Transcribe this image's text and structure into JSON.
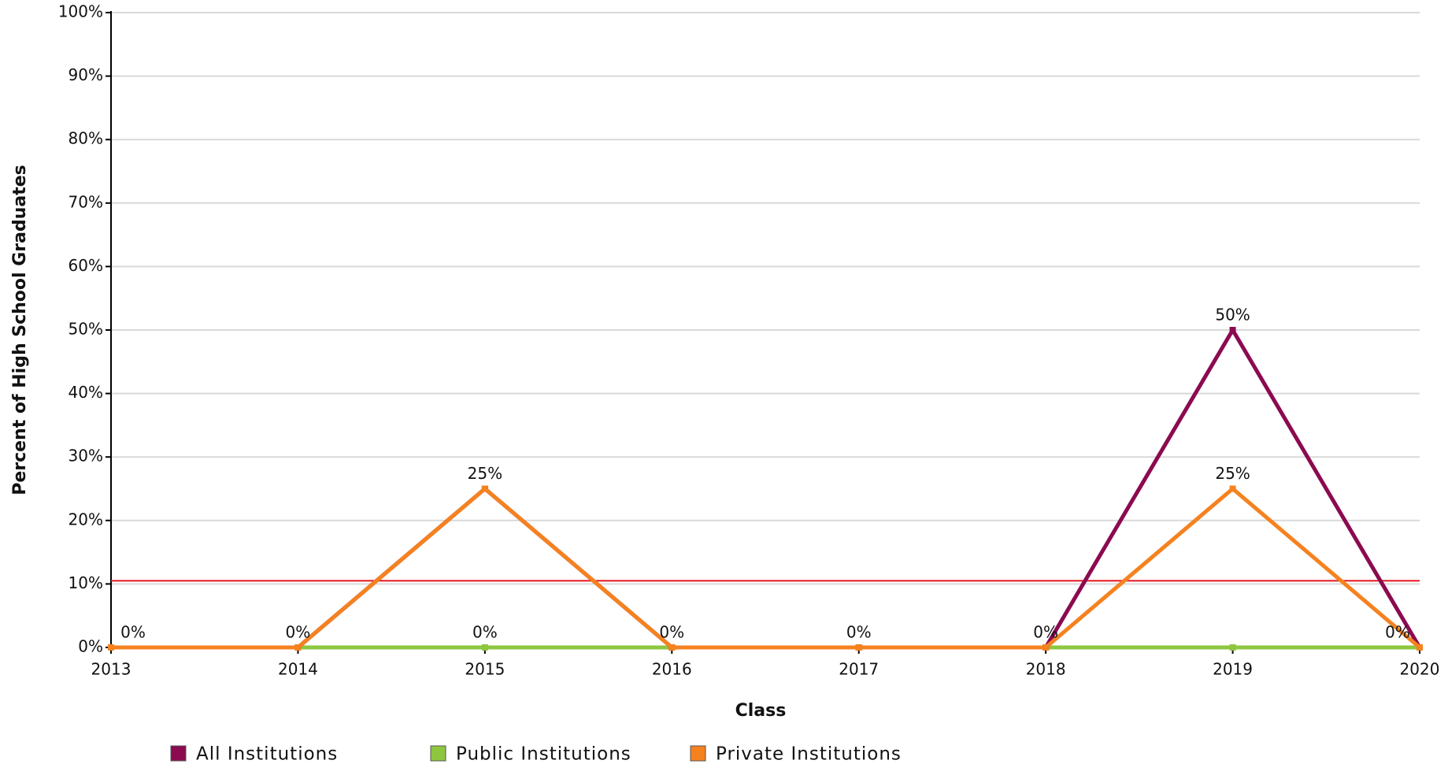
{
  "chart_data": {
    "type": "line",
    "x_label": "Class",
    "y_label": "Percent of High School Graduates",
    "x": [
      2013,
      2014,
      2015,
      2016,
      2017,
      2018,
      2019,
      2020
    ],
    "xlim": [
      2013,
      2020
    ],
    "xticks": [
      2013,
      2014,
      2015,
      2016,
      2017,
      2018,
      2019,
      2020
    ],
    "ylim": [
      0,
      100
    ],
    "yticks": [
      {
        "value": 0,
        "label": "0%"
      },
      {
        "value": 10,
        "label": "10%"
      },
      {
        "value": 20,
        "label": "20%"
      },
      {
        "value": 30,
        "label": "30%"
      },
      {
        "value": 40,
        "label": "40%"
      },
      {
        "value": 50,
        "label": "50%"
      },
      {
        "value": 60,
        "label": "60%"
      },
      {
        "value": 70,
        "label": "70%"
      },
      {
        "value": 80,
        "label": "80%"
      },
      {
        "value": 90,
        "label": "90%"
      },
      {
        "value": 100,
        "label": "100%"
      }
    ],
    "grid": true,
    "reference_line": {
      "value": 10.5,
      "color": "#e8141c"
    },
    "series": [
      {
        "name": "All Institutions",
        "color": "#8b0a50",
        "values": [
          0,
          0,
          25,
          0,
          0,
          0,
          50,
          0
        ],
        "value_labels": [
          "0%",
          "0%",
          "25%",
          "0%",
          "0%",
          "0%",
          "50%",
          "0%"
        ]
      },
      {
        "name": "Public Institutions",
        "color": "#8dc63f",
        "values": [
          0,
          0,
          0,
          0,
          0,
          0,
          0,
          0
        ],
        "value_labels": [
          null,
          null,
          "0%",
          null,
          null,
          null,
          null,
          null
        ]
      },
      {
        "name": "Private Institutions",
        "color": "#f5821f",
        "values": [
          0,
          0,
          25,
          0,
          0,
          0,
          25,
          0
        ],
        "value_labels": [
          null,
          null,
          null,
          null,
          null,
          null,
          "25%",
          null
        ]
      }
    ]
  }
}
